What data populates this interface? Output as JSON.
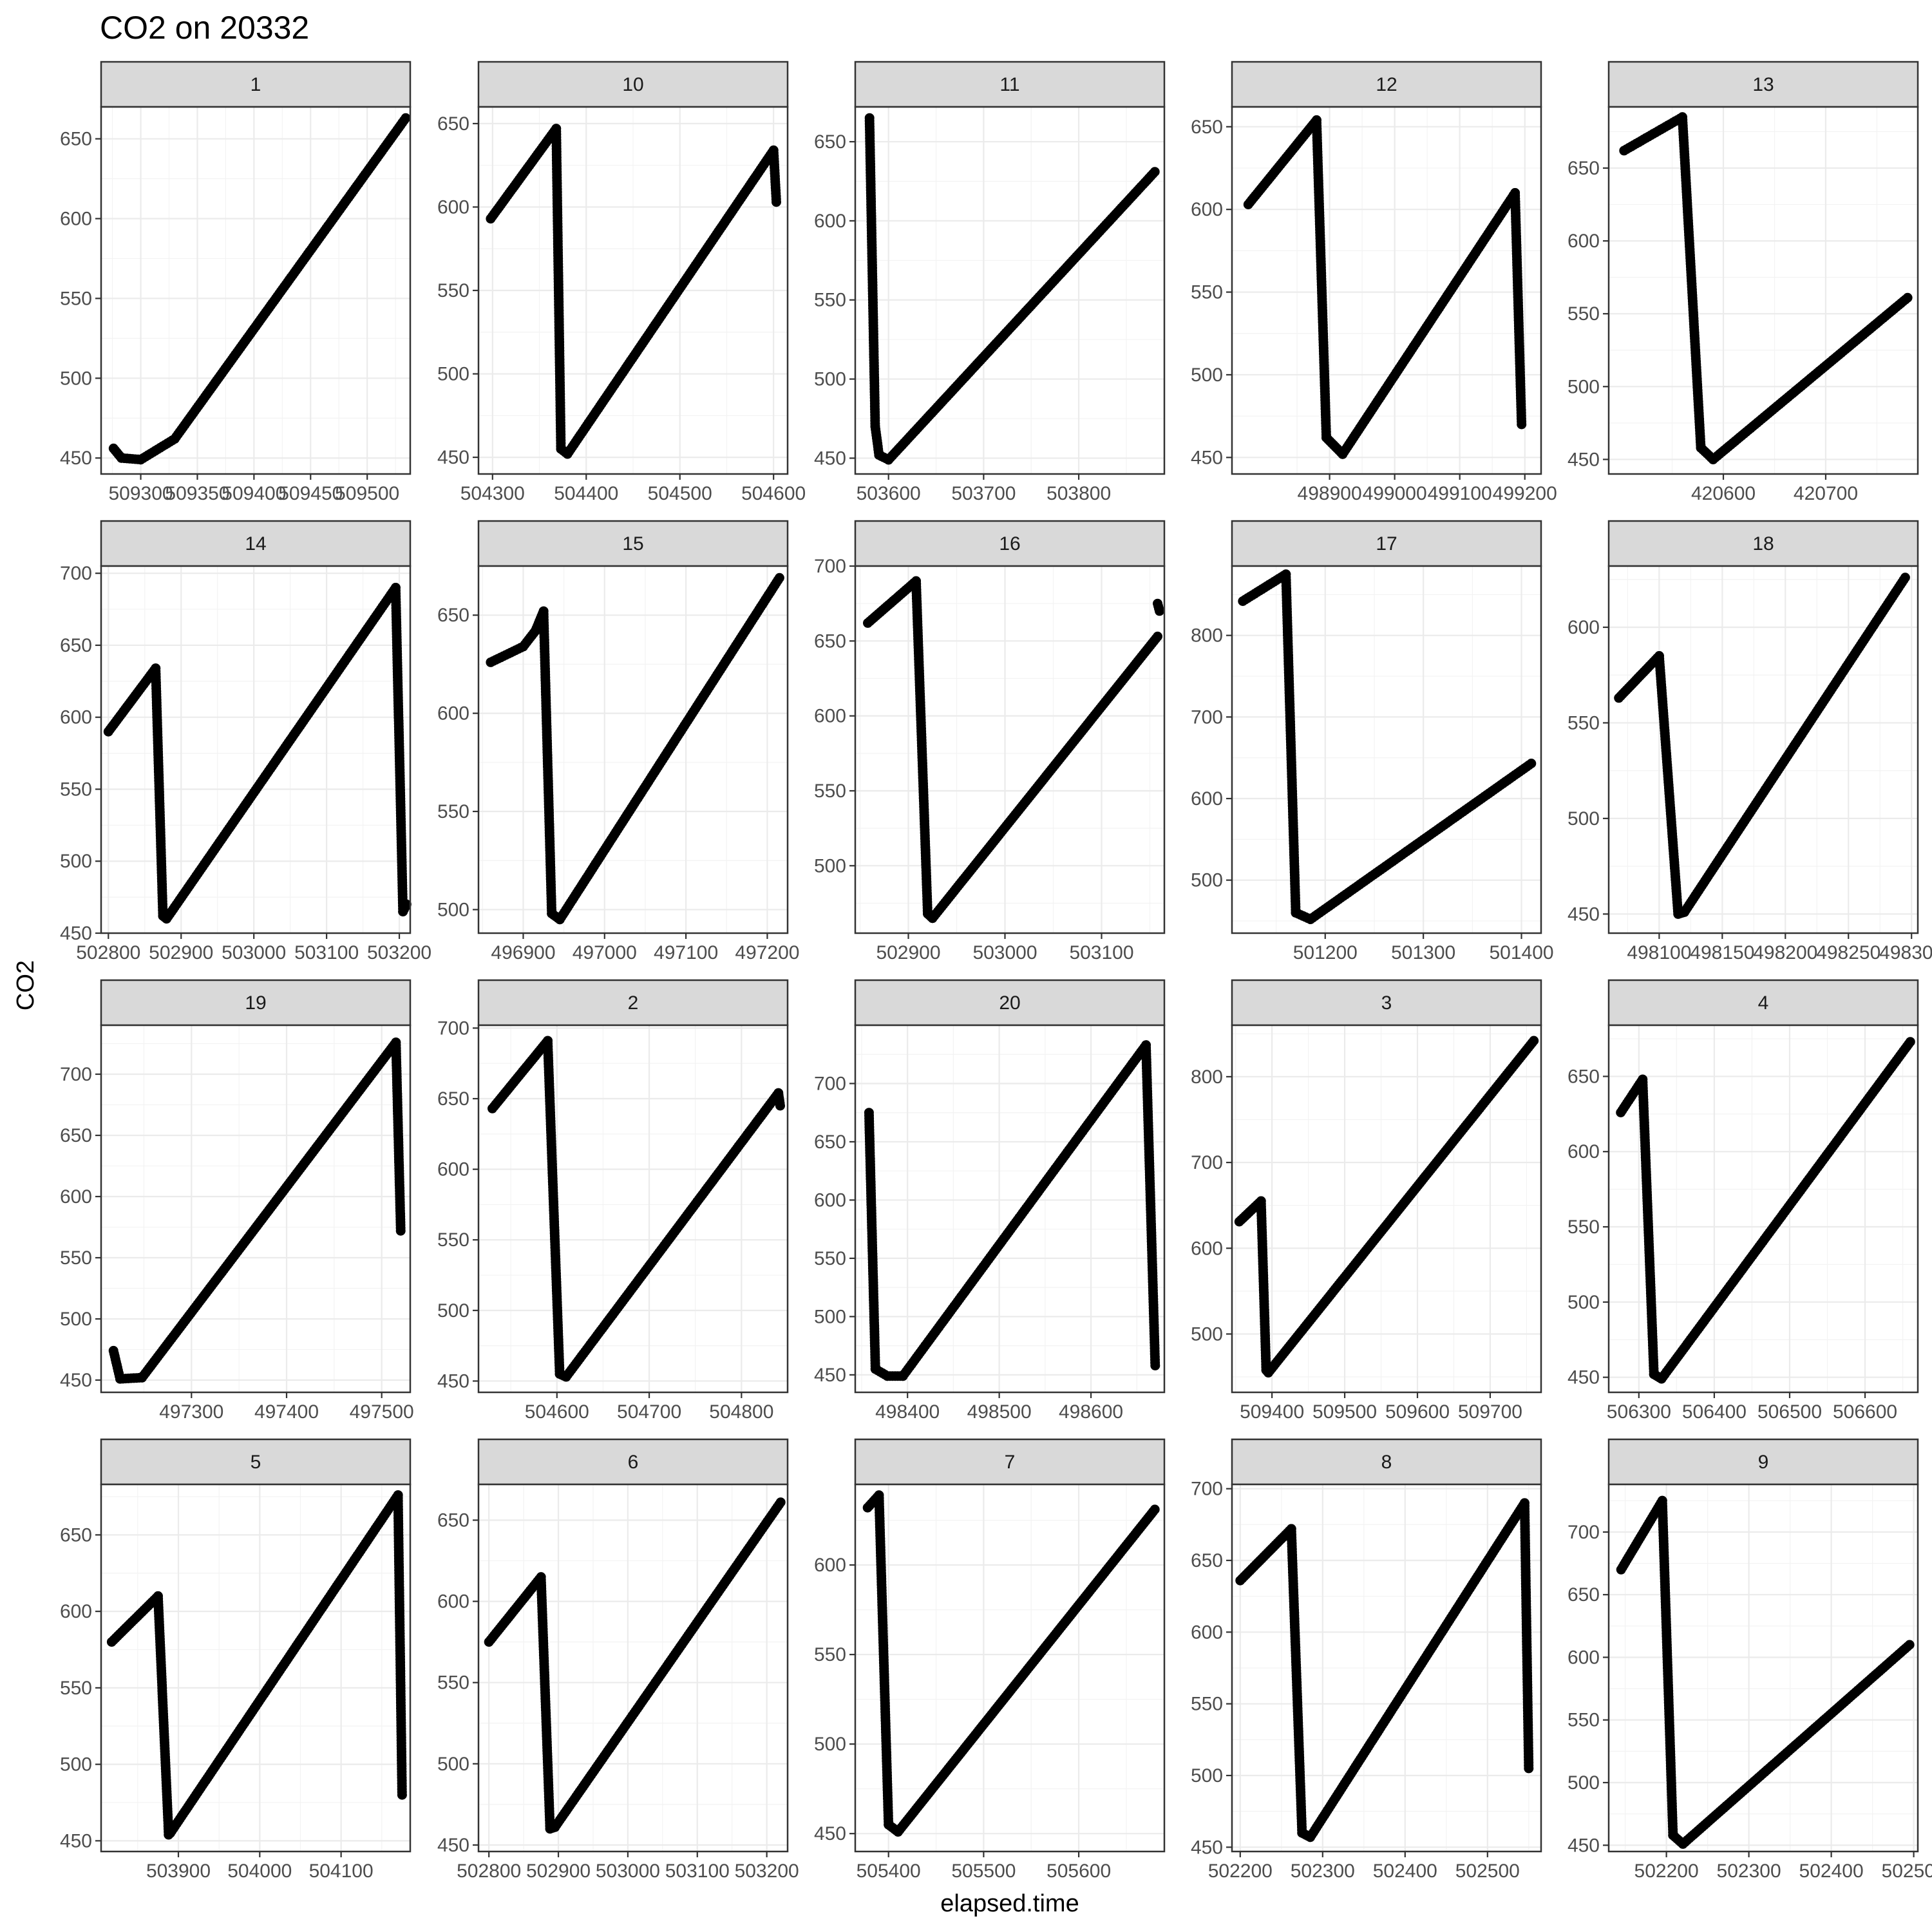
{
  "chart_data": {
    "type": "scatter",
    "title": "CO2 on 20332",
    "xlabel": "elapsed.time",
    "ylabel": "CO2",
    "facet_layout": "5 columns x 4 rows, free scales",
    "grid": true,
    "theme": "bw",
    "point_color": "#000000",
    "panels": [
      {
        "label": "1",
        "xlim": [
          509265,
          509538
        ],
        "ylim": [
          440,
          670
        ],
        "xticks": [
          509300,
          509350,
          509400,
          509450,
          509500
        ],
        "yticks": [
          450,
          500,
          550,
          600,
          650
        ],
        "segments": [
          {
            "x": [
              509276,
              509283,
              509300,
              509330,
              509534
            ],
            "y": [
              456,
              450,
              449,
              462,
              663
            ]
          }
        ]
      },
      {
        "label": "10",
        "xlim": [
          504285,
          504615
        ],
        "ylim": [
          440,
          660
        ],
        "xticks": [
          504300,
          504400,
          504500,
          504600
        ],
        "yticks": [
          450,
          500,
          550,
          600,
          650
        ],
        "segments": [
          {
            "x": [
              504298,
              504368
            ],
            "y": [
              593,
              647
            ]
          },
          {
            "x": [
              504368,
              504373,
              504380,
              504600
            ],
            "y": [
              647,
              455,
              452,
              634
            ]
          },
          {
            "x": [
              504600,
              504603
            ],
            "y": [
              634,
              603
            ]
          }
        ]
      },
      {
        "label": "11",
        "xlim": [
          503565,
          503890
        ],
        "ylim": [
          440,
          672
        ],
        "xticks": [
          503600,
          503700,
          503800
        ],
        "yticks": [
          450,
          500,
          550,
          600,
          650
        ],
        "segments": [
          {
            "x": [
              503580,
              503586,
              503590,
              503600,
              503880
            ],
            "y": [
              665,
              470,
              452,
              449,
              631
            ]
          }
        ]
      },
      {
        "label": "12",
        "xlim": [
          498750,
          499225
        ],
        "ylim": [
          440,
          662
        ],
        "xticks": [
          498900,
          499000,
          499100,
          499200
        ],
        "yticks": [
          450,
          500,
          550,
          600,
          650
        ],
        "segments": [
          {
            "x": [
              498775,
              498880
            ],
            "y": [
              603,
              654
            ]
          },
          {
            "x": [
              498880,
              498895,
              498920,
              499185
            ],
            "y": [
              654,
              462,
              452,
              610
            ]
          },
          {
            "x": [
              499185,
              499195
            ],
            "y": [
              610,
              470
            ]
          }
        ]
      },
      {
        "label": "13",
        "xlim": [
          420488,
          420790
        ],
        "ylim": [
          440,
          692
        ],
        "xticks": [
          420600,
          420700
        ],
        "yticks": [
          450,
          500,
          550,
          600,
          650
        ],
        "segments": [
          {
            "x": [
              420503,
              420560
            ],
            "y": [
              662,
              685
            ]
          },
          {
            "x": [
              420560,
              420578,
              420590,
              420780
            ],
            "y": [
              685,
              458,
              450,
              561
            ]
          }
        ]
      },
      {
        "label": "14",
        "xlim": [
          502790,
          503215
        ],
        "ylim": [
          450,
          705
        ],
        "xticks": [
          502800,
          502900,
          503000,
          503100,
          503200
        ],
        "yticks": [
          450,
          500,
          550,
          600,
          650,
          700
        ],
        "segments": [
          {
            "x": [
              502800,
              502865
            ],
            "y": [
              590,
              634
            ]
          },
          {
            "x": [
              502865,
              502875,
              502880,
              503195
            ],
            "y": [
              634,
              462,
              460,
              690
            ]
          },
          {
            "x": [
              503195,
              503205,
              503210
            ],
            "y": [
              690,
              465,
              470
            ]
          }
        ]
      },
      {
        "label": "15",
        "xlim": [
          496845,
          497225
        ],
        "ylim": [
          488,
          675
        ],
        "xticks": [
          496900,
          497000,
          497100,
          497200
        ],
        "yticks": [
          500,
          550,
          600,
          650
        ],
        "segments": [
          {
            "x": [
              496860,
              496900,
              496915,
              496925
            ],
            "y": [
              626,
              634,
              642,
              652
            ]
          },
          {
            "x": [
              496925,
              496935,
              496945,
              497215
            ],
            "y": [
              652,
              498,
              495,
              669
            ]
          }
        ]
      },
      {
        "label": "16",
        "xlim": [
          502845,
          503165
        ],
        "ylim": [
          455,
          700
        ],
        "xticks": [
          502900,
          503000,
          503100
        ],
        "yticks": [
          500,
          550,
          600,
          650,
          700
        ],
        "segments": [
          {
            "x": [
              502858,
              502908
            ],
            "y": [
              662,
              690
            ]
          },
          {
            "x": [
              502908,
              502920,
              502925,
              503158
            ],
            "y": [
              690,
              468,
              465,
              653
            ]
          },
          {
            "x": [
              503158,
              503160
            ],
            "y": [
              675,
              670
            ]
          }
        ]
      },
      {
        "label": "17",
        "xlim": [
          501105,
          501420
        ],
        "ylim": [
          435,
          885
        ],
        "xticks": [
          501200,
          501300,
          501400
        ],
        "yticks": [
          500,
          600,
          700,
          800
        ],
        "segments": [
          {
            "x": [
              501116,
              501160
            ],
            "y": [
              842,
              875
            ]
          },
          {
            "x": [
              501160,
              501170,
              501185,
              501410
            ],
            "y": [
              875,
              460,
              452,
              643
            ]
          }
        ]
      },
      {
        "label": "18",
        "xlim": [
          498060,
          498305
        ],
        "ylim": [
          440,
          632
        ],
        "xticks": [
          498050,
          498100,
          498150,
          498200,
          498250,
          498300
        ],
        "yticks": [
          450,
          500,
          550,
          600
        ],
        "segments": [
          {
            "x": [
              498068,
              498100
            ],
            "y": [
              563,
              585
            ]
          },
          {
            "x": [
              498100,
              498115,
              498120,
              498295
            ],
            "y": [
              585,
              450,
              451,
              626
            ]
          }
        ]
      },
      {
        "label": "19",
        "xlim": [
          497205,
          497530
        ],
        "ylim": [
          440,
          740
        ],
        "xticks": [
          497300,
          497400,
          497500
        ],
        "yticks": [
          450,
          500,
          550,
          600,
          650,
          700
        ],
        "segments": [
          {
            "x": [
              497218,
              497225,
              497248,
              497515
            ],
            "y": [
              474,
              451,
              452,
              726
            ]
          },
          {
            "x": [
              497515,
              497520
            ],
            "y": [
              726,
              572
            ]
          }
        ]
      },
      {
        "label": "2",
        "xlim": [
          504515,
          504850
        ],
        "ylim": [
          442,
          702
        ],
        "xticks": [
          504600,
          504700,
          504800
        ],
        "yticks": [
          450,
          500,
          550,
          600,
          650,
          700
        ],
        "segments": [
          {
            "x": [
              504530,
              504590
            ],
            "y": [
              643,
              691
            ]
          },
          {
            "x": [
              504590,
              504603,
              504610,
              504840
            ],
            "y": [
              691,
              455,
              453,
              654
            ]
          },
          {
            "x": [
              504840,
              504842
            ],
            "y": [
              654,
              645
            ]
          }
        ]
      },
      {
        "label": "20",
        "xlim": [
          498343,
          498680
        ],
        "ylim": [
          435,
          750
        ],
        "xticks": [
          498400,
          498500,
          498600
        ],
        "yticks": [
          450,
          500,
          550,
          600,
          650,
          700
        ],
        "segments": [
          {
            "x": [
              498358,
              498365,
              498378,
              498395
            ],
            "y": [
              675,
              455,
              449,
              449
            ]
          },
          {
            "x": [
              498395,
              498660
            ],
            "y": [
              449,
              733
            ]
          },
          {
            "x": [
              498660,
              498670
            ],
            "y": [
              733,
              458
            ]
          }
        ]
      },
      {
        "label": "3",
        "xlim": [
          509345,
          509770
        ],
        "ylim": [
          432,
          860
        ],
        "xticks": [
          509400,
          509500,
          509600,
          509700
        ],
        "yticks": [
          500,
          600,
          700,
          800
        ],
        "segments": [
          {
            "x": [
              509355,
              509385
            ],
            "y": [
              631,
              655
            ]
          },
          {
            "x": [
              509385,
              509392,
              509395,
              509760
            ],
            "y": [
              655,
              458,
              455,
              842
            ]
          }
        ]
      },
      {
        "label": "4",
        "xlim": [
          506260,
          506670
        ],
        "ylim": [
          440,
          684
        ],
        "xticks": [
          506300,
          506400,
          506500,
          506600
        ],
        "yticks": [
          450,
          500,
          550,
          600,
          650
        ],
        "segments": [
          {
            "x": [
              506276,
              506305
            ],
            "y": [
              626,
              648
            ]
          },
          {
            "x": [
              506305,
              506320,
              506330,
              506660
            ],
            "y": [
              648,
              452,
              449,
              673
            ]
          }
        ]
      },
      {
        "label": "5",
        "xlim": [
          503805,
          504185
        ],
        "ylim": [
          443,
          683
        ],
        "xticks": [
          503900,
          504000,
          504100
        ],
        "yticks": [
          450,
          500,
          550,
          600,
          650
        ],
        "segments": [
          {
            "x": [
              503818,
              503875
            ],
            "y": [
              580,
              610
            ]
          },
          {
            "x": [
              503875,
              503888,
              503890,
              504170
            ],
            "y": [
              610,
              454,
              455,
              676
            ]
          },
          {
            "x": [
              504170,
              504175
            ],
            "y": [
              676,
              480
            ]
          }
        ]
      },
      {
        "label": "6",
        "xlim": [
          502785,
          503230
        ],
        "ylim": [
          446,
          672
        ],
        "xticks": [
          502800,
          502900,
          503000,
          503100,
          503200
        ],
        "yticks": [
          450,
          500,
          550,
          600,
          650
        ],
        "segments": [
          {
            "x": [
              502800,
              502875
            ],
            "y": [
              575,
              615
            ]
          },
          {
            "x": [
              502875,
              502888,
              502895,
              503220
            ],
            "y": [
              615,
              460,
              461,
              661
            ]
          }
        ]
      },
      {
        "label": "7",
        "xlim": [
          505365,
          505690
        ],
        "ylim": [
          440,
          645
        ],
        "xticks": [
          505400,
          505500,
          505600
        ],
        "yticks": [
          450,
          500,
          550,
          600
        ],
        "segments": [
          {
            "x": [
              505378,
              505390
            ],
            "y": [
              632,
              639
            ]
          },
          {
            "x": [
              505390,
              505400,
              505410,
              505680
            ],
            "y": [
              639,
              455,
              451,
              631
            ]
          }
        ]
      },
      {
        "label": "8",
        "xlim": [
          502190,
          502565
        ],
        "ylim": [
          447,
          703
        ],
        "xticks": [
          502200,
          502300,
          502400,
          502500
        ],
        "yticks": [
          450,
          500,
          550,
          600,
          650,
          700
        ],
        "segments": [
          {
            "x": [
              502200,
              502262
            ],
            "y": [
              636,
              672
            ]
          },
          {
            "x": [
              502262,
              502275,
              502285,
              502545
            ],
            "y": [
              672,
              460,
              457,
              690
            ]
          },
          {
            "x": [
              502545,
              502550
            ],
            "y": [
              690,
              505
            ]
          }
        ]
      },
      {
        "label": "9",
        "xlim": [
          502130,
          502505
        ],
        "ylim": [
          445,
          738
        ],
        "xticks": [
          502200,
          502300,
          502400,
          502500
        ],
        "yticks": [
          450,
          500,
          550,
          600,
          650,
          700
        ],
        "segments": [
          {
            "x": [
              502145,
              502195
            ],
            "y": [
              670,
              725
            ]
          },
          {
            "x": [
              502195,
              502208,
              502220,
              502495
            ],
            "y": [
              725,
              458,
              451,
              610
            ]
          }
        ]
      }
    ]
  }
}
